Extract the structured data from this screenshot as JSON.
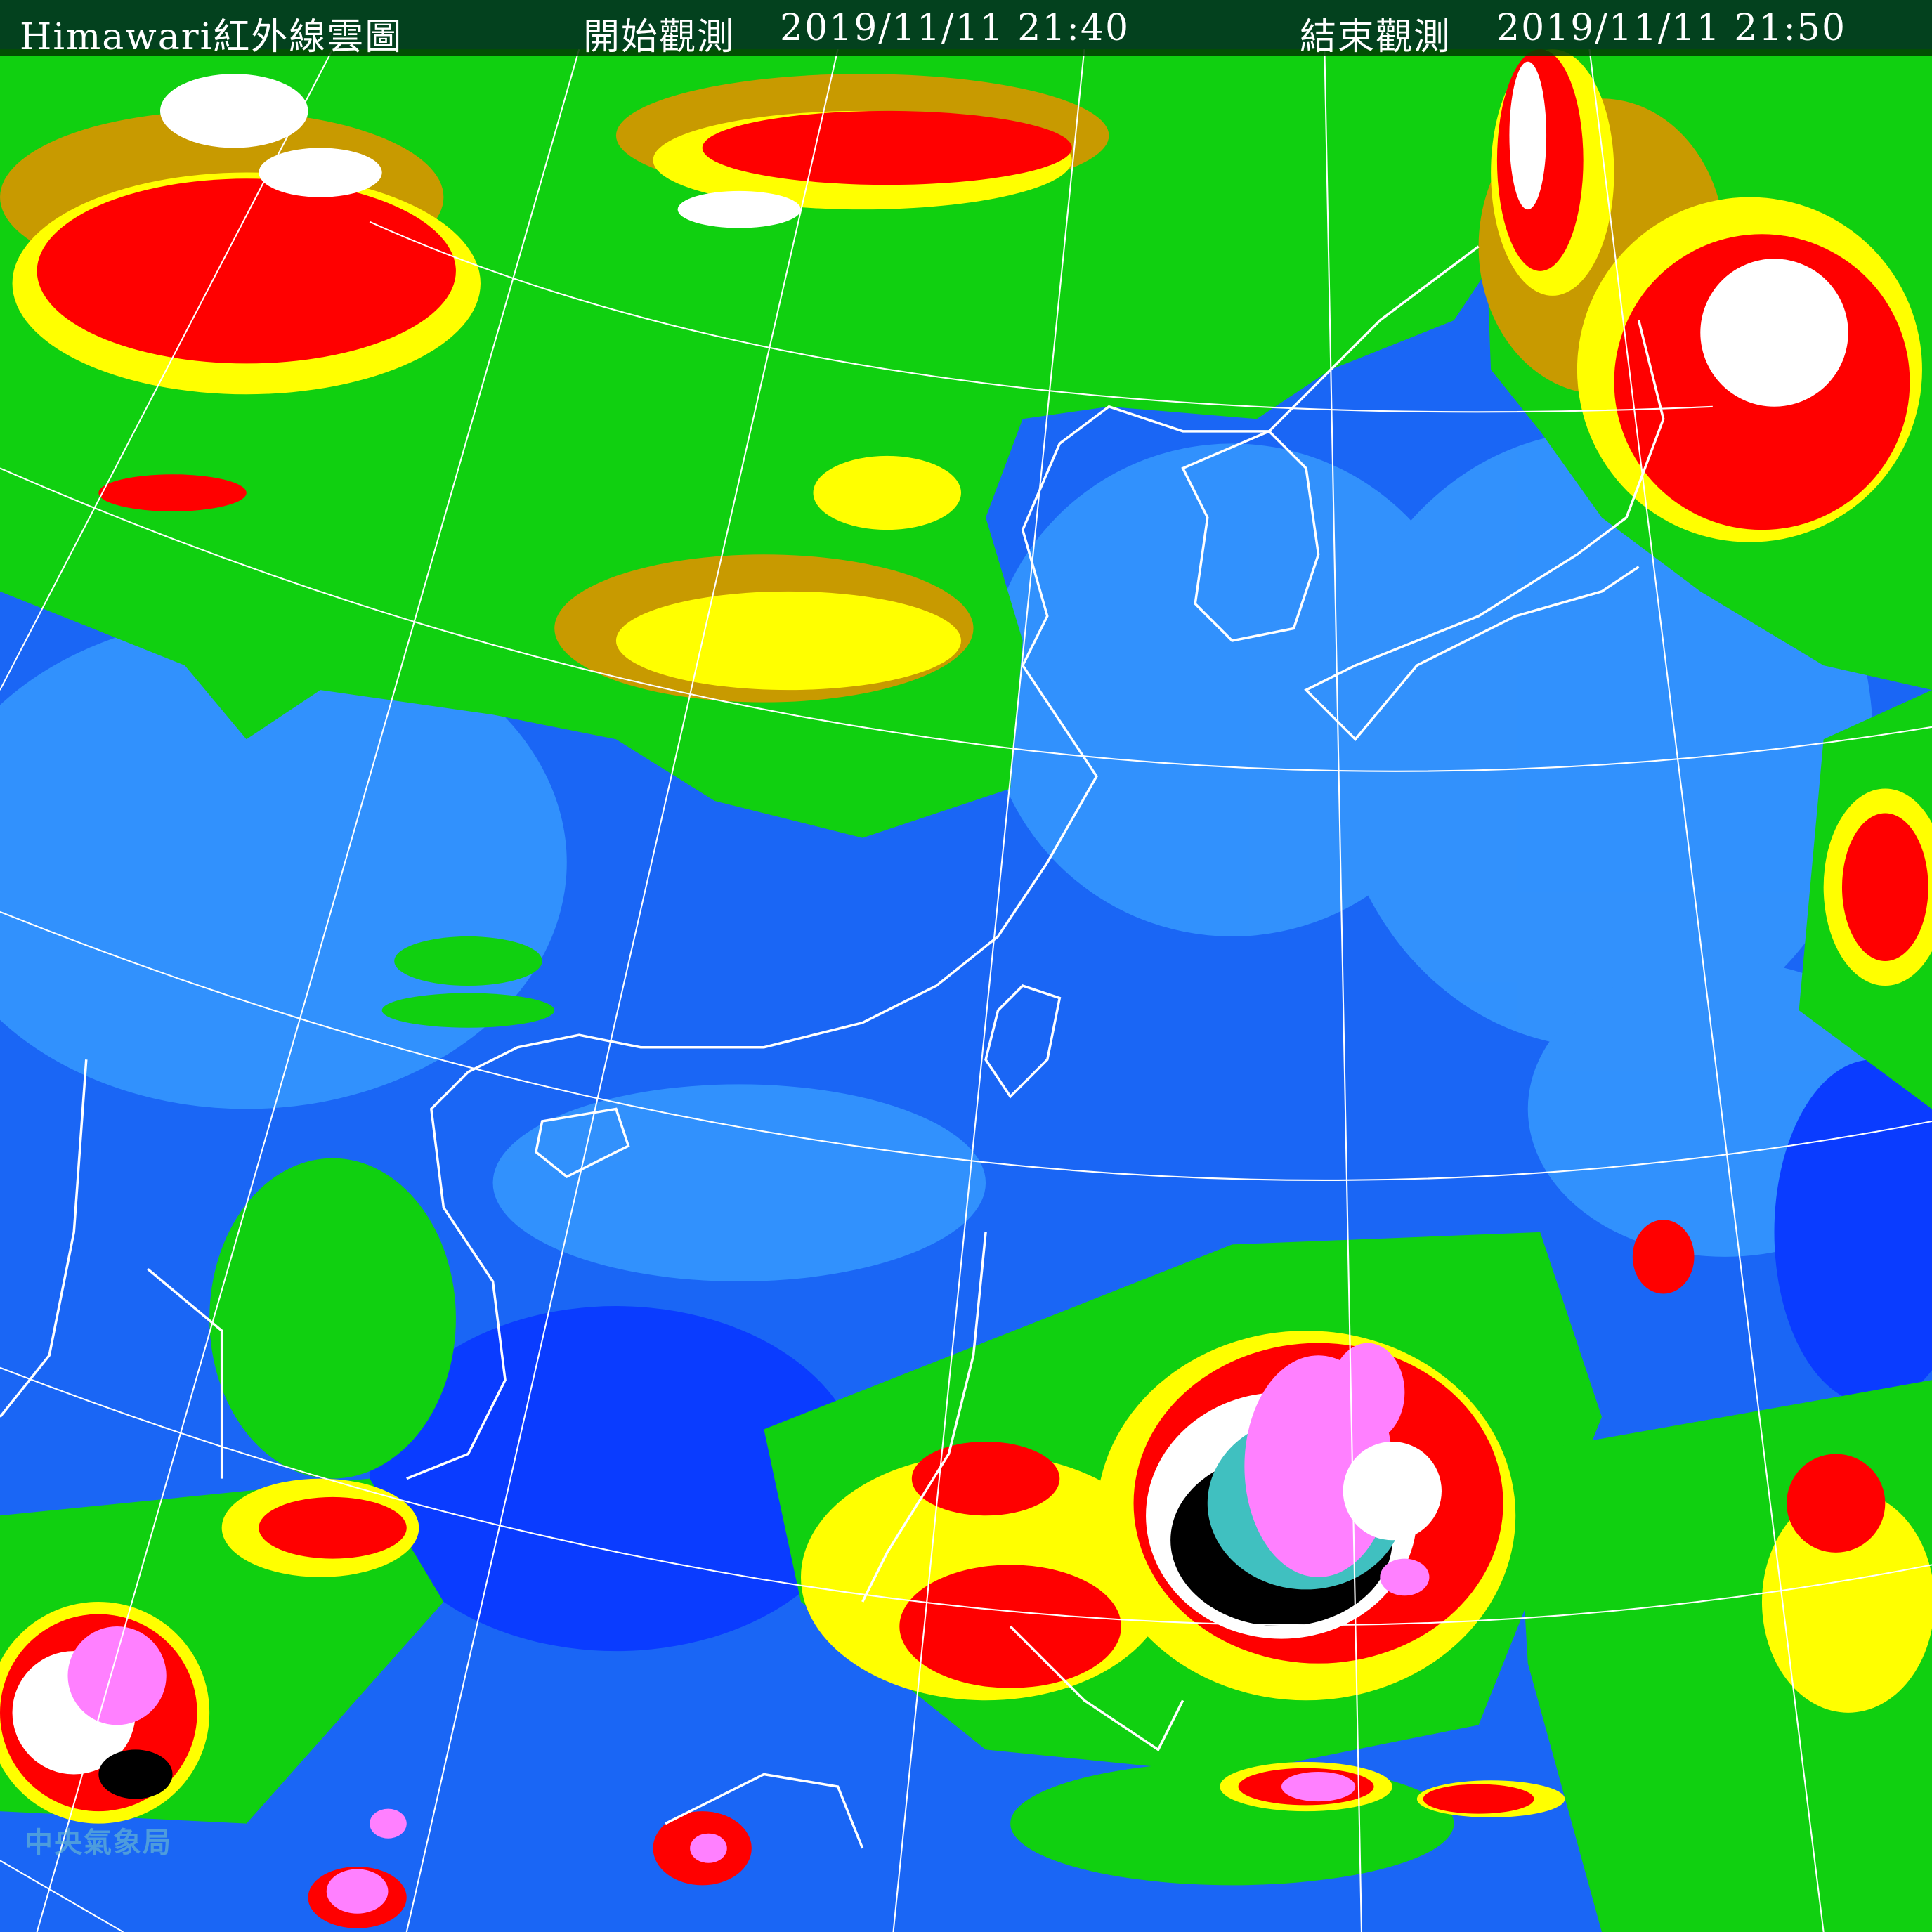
{
  "header": {
    "title": "Himawari紅外線雲圖",
    "start_label": "開始觀測",
    "start_time": "2019/11/11 21:40",
    "end_label": "結束觀測",
    "end_time": "2019/11/11 21:50"
  },
  "watermark": "中央氣象局",
  "colors": {
    "ocean_deep": "#0a3cff",
    "ocean": "#1a66f5",
    "ocean_light": "#3aa0ff",
    "land_clear": "#1ccc1c",
    "cloud_low": "#0fe80f",
    "cloud_mid": "#c89a00",
    "cloud_yellow": "#ffff00",
    "cloud_red": "#ff0000",
    "cloud_white": "#ffffff",
    "cloud_black": "#000000",
    "cloud_cyan": "#40c0c0",
    "cloud_magenta": "#ff80ff",
    "header_bg": "#003c00",
    "grid": "#ffffff"
  }
}
